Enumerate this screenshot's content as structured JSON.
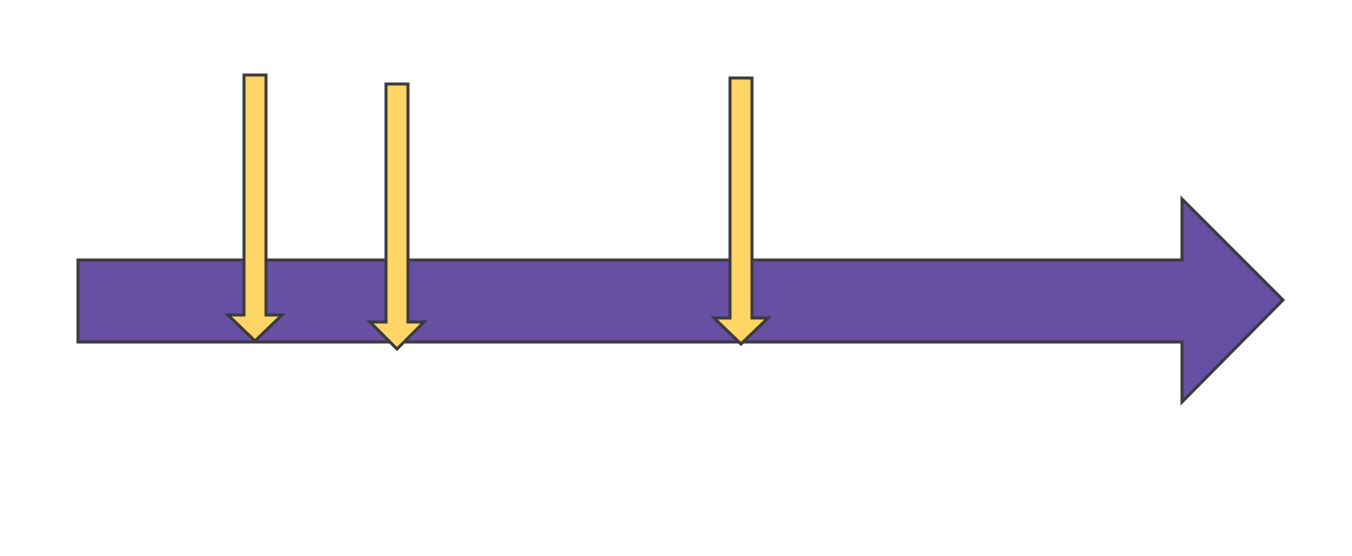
{
  "diagram": {
    "colors": {
      "background": "#ffffff",
      "timeline_fill": "#6750A4",
      "marker_fill": "#FFD666",
      "stroke": "#3A3A3A"
    },
    "timeline": {
      "direction": "right"
    },
    "markers": [
      {
        "direction": "down"
      },
      {
        "direction": "down"
      },
      {
        "direction": "down"
      }
    ]
  }
}
